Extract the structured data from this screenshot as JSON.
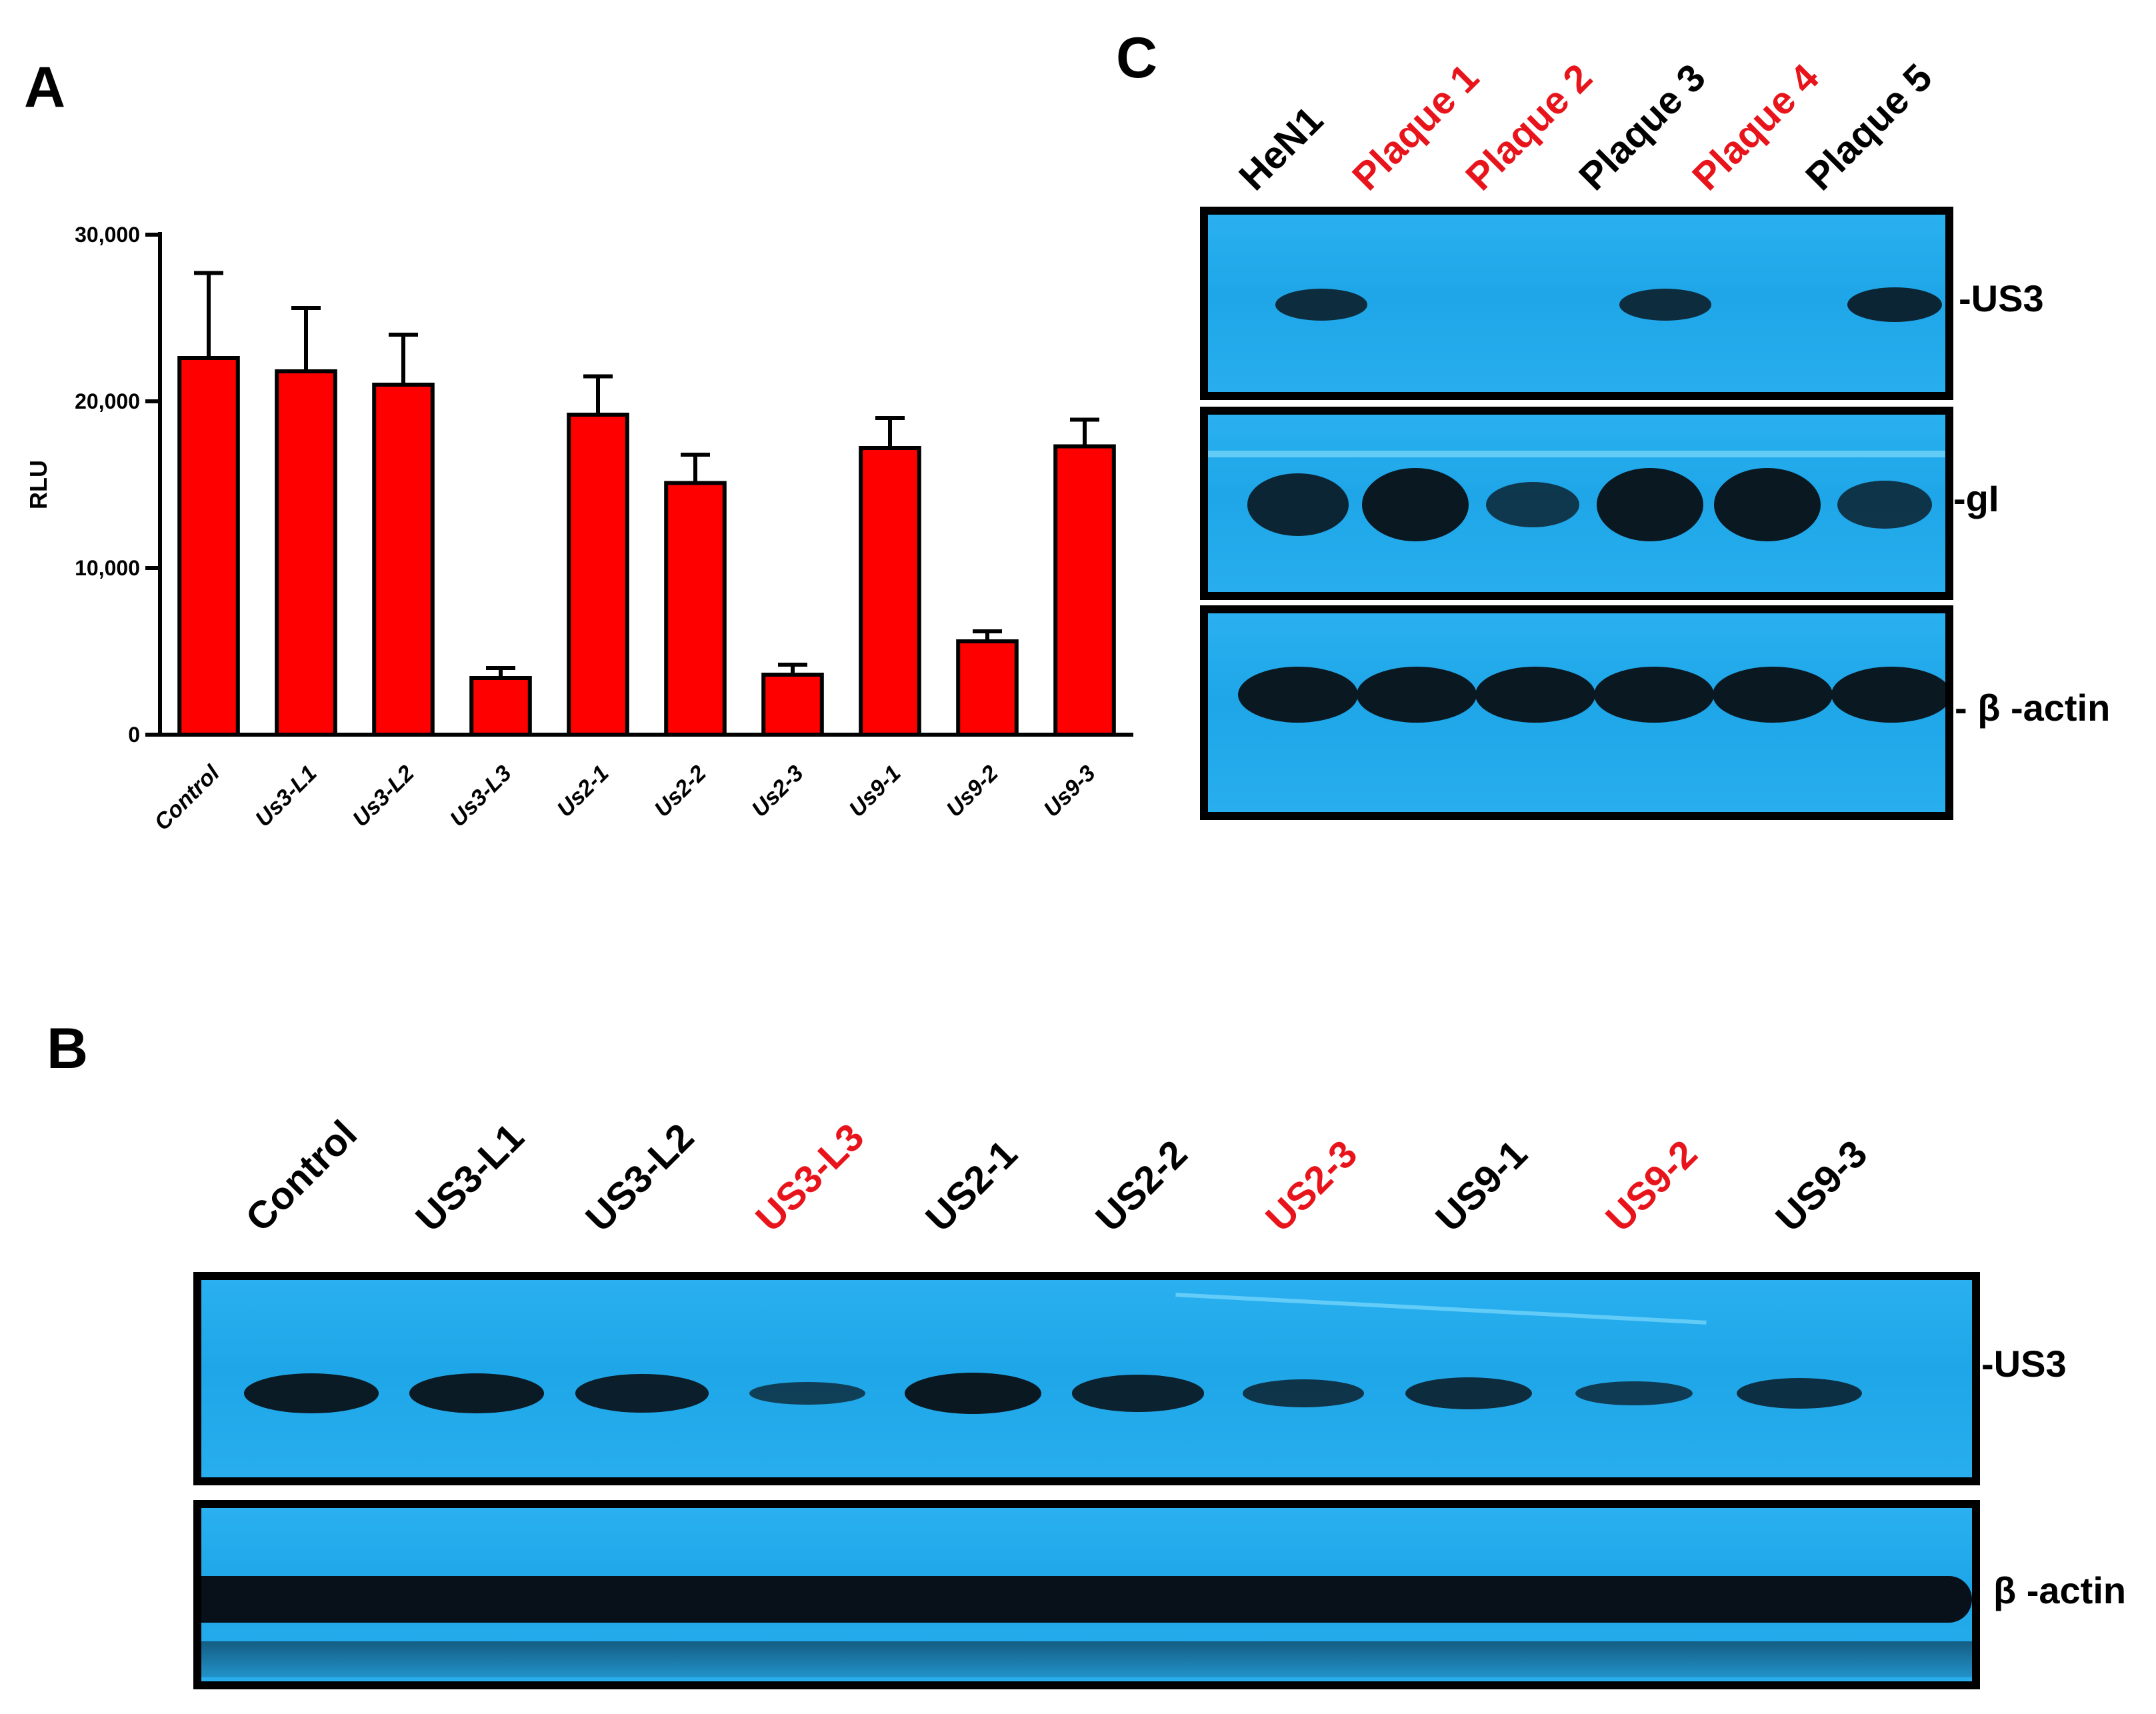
{
  "panels": {
    "a": {
      "letter": "A"
    },
    "b": {
      "letter": "B",
      "lanes": [
        {
          "label": "Control",
          "color": "#000000"
        },
        {
          "label": "US3-L1",
          "color": "#000000"
        },
        {
          "label": "US3-L2",
          "color": "#000000"
        },
        {
          "label": "US3-L3",
          "color": "#e8141b"
        },
        {
          "label": "US2-1",
          "color": "#000000"
        },
        {
          "label": "US2-2",
          "color": "#000000"
        },
        {
          "label": "US2-3",
          "color": "#e8141b"
        },
        {
          "label": "US9-1",
          "color": "#000000"
        },
        {
          "label": "US9-2",
          "color": "#e8141b"
        },
        {
          "label": "US9-3",
          "color": "#000000"
        }
      ],
      "rows": [
        {
          "label": "-US3",
          "band_intensity": [
            0.95,
            0.95,
            0.9,
            0.4,
            1.0,
            0.85,
            0.55,
            0.7,
            0.45,
            0.65
          ]
        },
        {
          "label": "β -actin",
          "band_intensity": [
            1,
            1,
            1,
            1,
            1,
            1,
            1,
            1,
            1,
            1
          ]
        }
      ]
    },
    "c": {
      "letter": "C",
      "lanes": [
        {
          "label": "HeN1",
          "color": "#000000"
        },
        {
          "label": "Plaque 1",
          "color": "#e8141b"
        },
        {
          "label": "Plaque 2",
          "color": "#e8141b"
        },
        {
          "label": "Plaque 3",
          "color": "#000000"
        },
        {
          "label": "Plaque 4",
          "color": "#e8141b"
        },
        {
          "label": "Plaque 5",
          "color": "#000000"
        }
      ],
      "rows": [
        {
          "label": "-US3",
          "band_intensity": [
            0.7,
            0,
            0,
            0.7,
            0,
            0.8
          ]
        },
        {
          "label": "-gI",
          "band_intensity": [
            0.8,
            1.0,
            0.5,
            1.0,
            1.0,
            0.55
          ]
        },
        {
          "label": "- β -actin",
          "band_intensity": [
            1,
            1,
            1,
            1,
            1,
            1
          ]
        }
      ]
    }
  },
  "chart_data": {
    "type": "bar",
    "title": "",
    "xlabel": "",
    "ylabel": "RLU",
    "ylim": [
      0,
      30000
    ],
    "yticks": [
      0,
      10000,
      20000,
      30000
    ],
    "ytick_labels": [
      "0",
      "10,000",
      "20,000",
      "30,000"
    ],
    "categories": [
      "Control",
      "Us3-L1",
      "Us3-L2",
      "Us3-L3",
      "Us2-1",
      "Us2-2",
      "Us2-3",
      "Us9-1",
      "Us9-2",
      "Us9-3"
    ],
    "values": [
      22600,
      21800,
      21000,
      3400,
      19200,
      15100,
      3600,
      17200,
      5600,
      17300
    ],
    "errors": [
      5100,
      3800,
      3000,
      600,
      2300,
      1700,
      600,
      1800,
      600,
      1600
    ],
    "bar_color": "#ff0000",
    "grid": false,
    "legend": "none"
  }
}
